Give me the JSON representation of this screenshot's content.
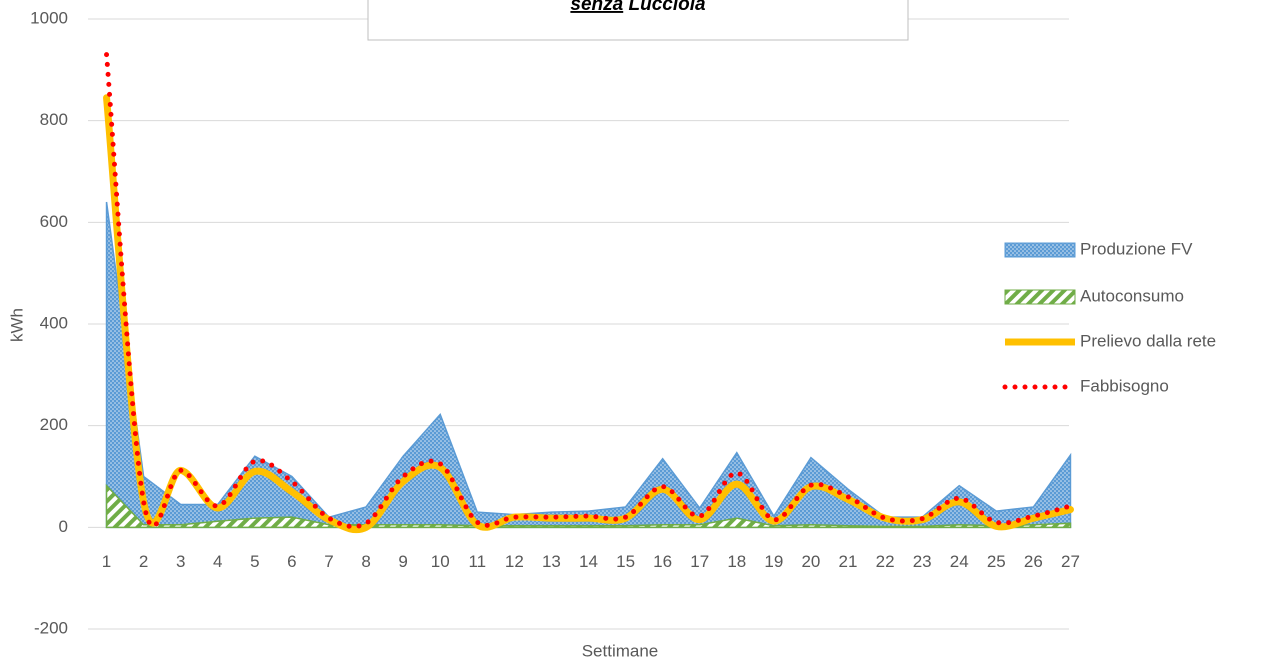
{
  "chart_data": {
    "type": "area-line",
    "title": [
      "senza",
      "Lucciola"
    ],
    "x_label": "Settimane",
    "y_label": "kWh",
    "categories": [
      "1",
      "2",
      "3",
      "4",
      "5",
      "6",
      "7",
      "8",
      "9",
      "10",
      "11",
      "12",
      "13",
      "14",
      "15",
      "16",
      "17",
      "18",
      "19",
      "20",
      "21",
      "22",
      "23",
      "24",
      "25",
      "26",
      "27"
    ],
    "ylim": [
      -200,
      1000
    ],
    "yticks": [
      -200,
      0,
      200,
      400,
      600,
      800,
      1000
    ],
    "grid": true,
    "legend": "right",
    "series": [
      {
        "name": "Produzione FV",
        "kind": "area",
        "color": "#5b9bd5",
        "values": [
          640,
          100,
          45,
          45,
          140,
          100,
          20,
          40,
          140,
          222,
          30,
          25,
          30,
          32,
          40,
          135,
          38,
          147,
          22,
          137,
          75,
          20,
          20,
          82,
          32,
          40,
          142
        ]
      },
      {
        "name": "Autoconsumo",
        "kind": "area",
        "color": "#70ad47",
        "values": [
          82,
          5,
          5,
          12,
          18,
          20,
          5,
          5,
          5,
          5,
          3,
          3,
          3,
          3,
          3,
          5,
          5,
          18,
          3,
          5,
          3,
          2,
          2,
          5,
          3,
          5,
          8
        ]
      },
      {
        "name": "Prelievo dalla rete",
        "kind": "line",
        "color": "#ffc000",
        "values": [
          845,
          50,
          112,
          38,
          110,
          70,
          15,
          0,
          90,
          118,
          5,
          20,
          18,
          18,
          18,
          75,
          15,
          85,
          12,
          80,
          55,
          18,
          15,
          50,
          2,
          18,
          35
        ]
      },
      {
        "name": "Fabbisogno",
        "kind": "dotted",
        "color": "#ff0000",
        "values": [
          930,
          50,
          112,
          42,
          130,
          90,
          18,
          8,
          100,
          125,
          10,
          20,
          20,
          22,
          20,
          80,
          22,
          107,
          15,
          83,
          60,
          18,
          17,
          57,
          10,
          22,
          42
        ]
      }
    ]
  }
}
